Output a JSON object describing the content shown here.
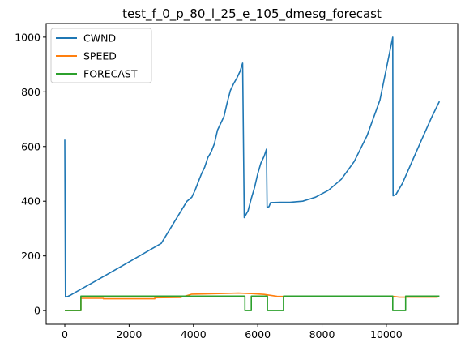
{
  "chart_data": {
    "type": "line",
    "title": "test_f_0_p_80_l_25_e_105_dmesg_forecast",
    "xlabel": "",
    "ylabel": "",
    "xlim": [
      -580,
      12220
    ],
    "ylim": [
      -50,
      1050
    ],
    "xticks": [
      0,
      2000,
      4000,
      6000,
      8000,
      10000
    ],
    "yticks": [
      0,
      200,
      400,
      600,
      800,
      1000
    ],
    "grid": false,
    "legend_position": "upper-left",
    "series": [
      {
        "name": "CWND",
        "color": "#1f77b4",
        "points": [
          [
            0,
            625
          ],
          [
            20,
            50
          ],
          [
            100,
            52
          ],
          [
            200,
            58
          ],
          [
            500,
            78
          ],
          [
            1000,
            111
          ],
          [
            2000,
            178
          ],
          [
            3000,
            246
          ],
          [
            3800,
            400
          ],
          [
            3950,
            415
          ],
          [
            4050,
            440
          ],
          [
            4150,
            470
          ],
          [
            4250,
            500
          ],
          [
            4350,
            525
          ],
          [
            4450,
            560
          ],
          [
            4550,
            580
          ],
          [
            4650,
            610
          ],
          [
            4750,
            660
          ],
          [
            4850,
            685
          ],
          [
            4950,
            710
          ],
          [
            5050,
            760
          ],
          [
            5150,
            805
          ],
          [
            5250,
            830
          ],
          [
            5350,
            850
          ],
          [
            5450,
            875
          ],
          [
            5530,
            905
          ],
          [
            5580,
            340
          ],
          [
            5700,
            365
          ],
          [
            5800,
            410
          ],
          [
            5900,
            450
          ],
          [
            6000,
            500
          ],
          [
            6100,
            540
          ],
          [
            6200,
            565
          ],
          [
            6270,
            590
          ],
          [
            6290,
            378
          ],
          [
            6350,
            380
          ],
          [
            6400,
            395
          ],
          [
            6700,
            396
          ],
          [
            7000,
            396
          ],
          [
            7400,
            400
          ],
          [
            7800,
            415
          ],
          [
            8200,
            440
          ],
          [
            8600,
            480
          ],
          [
            9000,
            545
          ],
          [
            9400,
            640
          ],
          [
            9800,
            770
          ],
          [
            10200,
            1000
          ],
          [
            10210,
            420
          ],
          [
            10300,
            425
          ],
          [
            10500,
            465
          ],
          [
            10800,
            545
          ],
          [
            11100,
            625
          ],
          [
            11400,
            705
          ],
          [
            11650,
            765
          ]
        ]
      },
      {
        "name": "SPEED",
        "color": "#ff7f0e",
        "points": [
          [
            0,
            0
          ],
          [
            500,
            0
          ],
          [
            500,
            45
          ],
          [
            1200,
            45
          ],
          [
            1200,
            43
          ],
          [
            2800,
            43
          ],
          [
            2800,
            47
          ],
          [
            3600,
            48
          ],
          [
            3950,
            60
          ],
          [
            4800,
            62
          ],
          [
            5400,
            64
          ],
          [
            5800,
            62
          ],
          [
            6200,
            59
          ],
          [
            6600,
            52
          ],
          [
            7000,
            51
          ],
          [
            7400,
            51
          ],
          [
            7800,
            52
          ],
          [
            8400,
            53
          ],
          [
            9500,
            53
          ],
          [
            10200,
            52
          ],
          [
            10400,
            49
          ],
          [
            11600,
            49
          ]
        ]
      },
      {
        "name": "FORECAST",
        "color": "#2ca02c",
        "points": [
          [
            0,
            0
          ],
          [
            500,
            0
          ],
          [
            500,
            53
          ],
          [
            5600,
            53
          ],
          [
            5600,
            0
          ],
          [
            5800,
            0
          ],
          [
            5800,
            53
          ],
          [
            6300,
            53
          ],
          [
            6300,
            0
          ],
          [
            6800,
            0
          ],
          [
            6800,
            53
          ],
          [
            10200,
            53
          ],
          [
            10200,
            0
          ],
          [
            10600,
            0
          ],
          [
            10600,
            53
          ],
          [
            11650,
            53
          ]
        ]
      }
    ]
  }
}
